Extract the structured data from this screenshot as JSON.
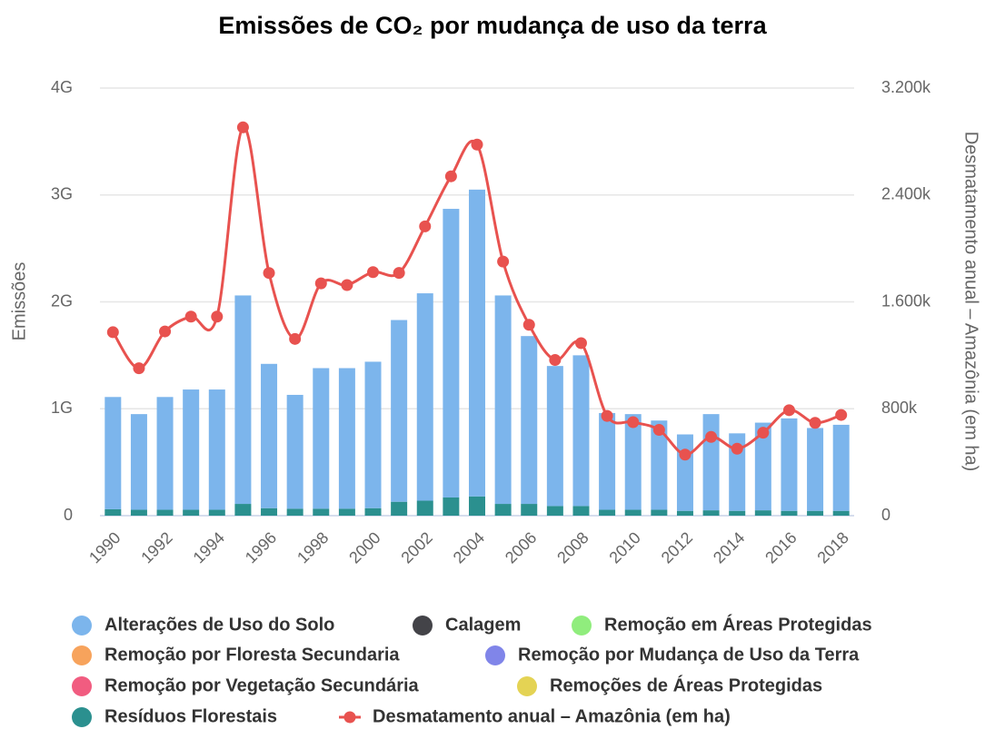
{
  "chart_data": {
    "type": "bar",
    "title": "Emissões de CO₂ por mudança de uso da terra",
    "y_label": "Emissões",
    "y2_label": "Desmatamento anual – Amazônia (em ha)",
    "stacked": true,
    "grid": true,
    "categories": [
      "1990",
      null,
      "1992",
      null,
      "1994",
      null,
      "1996",
      null,
      "1998",
      null,
      "2000",
      null,
      "2002",
      null,
      "2004",
      null,
      "2006",
      null,
      "2008",
      null,
      "2010",
      null,
      "2012",
      null,
      "2014",
      null,
      "2016",
      null,
      "2018"
    ],
    "ylim": [
      0,
      4000000000
    ],
    "yticks": [
      0,
      {
        "value": 1000000000,
        "label": "1G"
      },
      {
        "value": 2000000000,
        "label": "2G"
      },
      {
        "value": 3000000000,
        "label": "3G"
      },
      {
        "value": 4000000000,
        "label": "4G"
      }
    ],
    "y2lim": [
      0,
      3200000
    ],
    "y2ticks": [
      0,
      {
        "value": 800000,
        "label": "800k"
      },
      {
        "value": 1600000,
        "label": "1.600k"
      },
      {
        "value": 2400000,
        "label": "2.400k"
      },
      {
        "value": 3200000,
        "label": "3.200k"
      }
    ],
    "series": [
      {
        "name": "Resíduos Florestais",
        "color": "#2b908f",
        "kind": "bar",
        "values": [
          60000000,
          55000000,
          55000000,
          55000000,
          55000000,
          110000000,
          70000000,
          65000000,
          65000000,
          65000000,
          70000000,
          130000000,
          140000000,
          170000000,
          180000000,
          110000000,
          110000000,
          90000000,
          90000000,
          55000000,
          55000000,
          55000000,
          45000000,
          50000000,
          45000000,
          50000000,
          45000000,
          45000000,
          45000000
        ]
      },
      {
        "name": "Alterações de Uso do Solo",
        "color": "#7cb5ec",
        "kind": "bar",
        "values": [
          1050000000,
          895000000,
          1055000000,
          1125000000,
          1125000000,
          1950000000,
          1350000000,
          1065000000,
          1315000000,
          1315000000,
          1370000000,
          1700000000,
          1940000000,
          2700000000,
          2870000000,
          1950000000,
          1570000000,
          1310000000,
          1410000000,
          905000000,
          895000000,
          835000000,
          715000000,
          900000000,
          725000000,
          820000000,
          865000000,
          775000000,
          805000000
        ]
      },
      {
        "name": "Calagem",
        "color": "#434348",
        "kind": "legend"
      },
      {
        "name": "Remoção em Áreas Protegidas",
        "color": "#90ed7d",
        "kind": "legend"
      },
      {
        "name": "Remoção por Floresta Secundaria",
        "color": "#f7a35c",
        "kind": "legend"
      },
      {
        "name": "Remoção por Mudança de Uso da Terra",
        "color": "#8085e9",
        "kind": "legend"
      },
      {
        "name": "Remoção por Vegetação Secundária",
        "color": "#f15c80",
        "kind": "legend"
      },
      {
        "name": "Remoções de Áreas Protegidas",
        "color": "#e4d354",
        "kind": "legend"
      },
      {
        "name": "Desmatamento anual – Amazônia (em ha)",
        "color": "#e8524f",
        "kind": "line",
        "axis": "y2",
        "values": [
          1373000,
          1103000,
          1378600,
          1489600,
          1489600,
          2905900,
          1816100,
          1322700,
          1738300,
          1725900,
          1822600,
          1816500,
          2165100,
          2539600,
          2777200,
          1901400,
          1428600,
          1165100,
          1291100,
          746400,
          700000,
          641800,
          457100,
          589100,
          501200,
          620700,
          789300,
          694700,
          753600
        ]
      }
    ]
  }
}
